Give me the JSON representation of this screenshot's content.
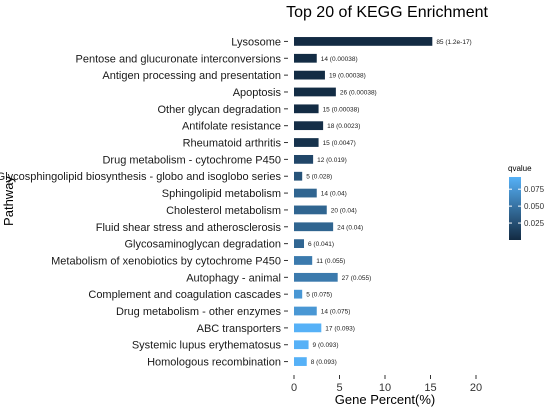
{
  "chart_data": {
    "type": "bar",
    "orientation": "horizontal",
    "title": "Top 20 of KEGG Enrichment",
    "xlabel": "Gene Percent(%)",
    "ylabel": "Pathway",
    "xlim": [
      0,
      20
    ],
    "xticks": [
      "0",
      "5",
      "10",
      "15",
      "20"
    ],
    "grid": false,
    "color_scale": {
      "title": "qvalue",
      "ticks": [
        "0.025",
        "0.050",
        "0.075"
      ],
      "tick_values": [
        0.025,
        0.05,
        0.075
      ],
      "domain": [
        0.0,
        0.093
      ],
      "low_color": "#132B43",
      "high_color": "#56B1F7",
      "placement": "right"
    },
    "categories": [
      "Lysosome",
      "Pentose and glucuronate interconversions",
      "Antigen processing and presentation",
      "Apoptosis",
      "Other glycan degradation",
      "Antifolate resistance",
      "Rheumatoid arthritis",
      "Drug metabolism - cytochrome P450",
      "Glycosphingolipid biosynthesis - globo and isoglobo series",
      "Sphingolipid metabolism",
      "Cholesterol metabolism",
      "Fluid shear stress and atherosclerosis",
      "Glycosaminoglycan degradation",
      "Metabolism of xenobiotics by cytochrome P450",
      "Autophagy - animal",
      "Complement and coagulation cascades",
      "Drug metabolism - other enzymes",
      "ABC transporters",
      "Systemic lupus erythematosus",
      "Homologous recombination"
    ],
    "values": [
      15.2,
      2.5,
      3.4,
      4.6,
      2.7,
      3.2,
      2.7,
      2.1,
      0.9,
      2.5,
      3.6,
      4.3,
      1.1,
      2.0,
      4.8,
      0.9,
      2.5,
      3.0,
      1.6,
      1.4
    ],
    "qvalues": [
      0.0,
      0.00038,
      0.00038,
      0.00038,
      0.00038,
      0.0023,
      0.0047,
      0.019,
      0.028,
      0.04,
      0.04,
      0.04,
      0.041,
      0.055,
      0.055,
      0.075,
      0.075,
      0.093,
      0.093,
      0.093
    ],
    "data_labels": [
      "85 (1.2e-17)",
      "14 (0.00038)",
      "19 (0.00038)",
      "26 (0.00038)",
      "15 (0.00038)",
      "18 (0.0023)",
      "15 (0.0047)",
      "12 (0.019)",
      "5 (0.028)",
      "14 (0.04)",
      "20 (0.04)",
      "24 (0.04)",
      "6 (0.041)",
      "11 (0.055)",
      "27 (0.055)",
      "5 (0.075)",
      "14 (0.075)",
      "17 (0.093)",
      "9 (0.093)",
      "8 (0.093)"
    ]
  }
}
